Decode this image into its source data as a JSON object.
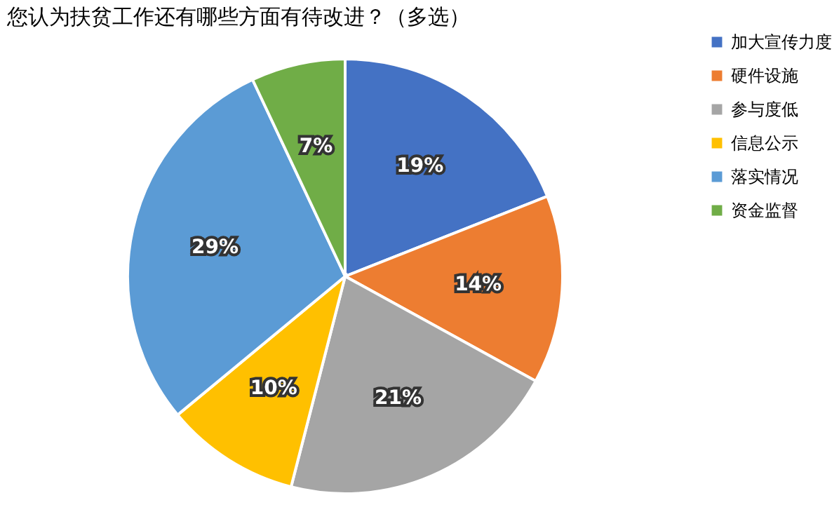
{
  "chart_data": {
    "type": "pie",
    "title": "您认为扶贫工作还有哪些方面有待改进？（多选）",
    "categories": [
      "加大宣传力度",
      "硬件设施",
      "参与度低",
      "信息公示",
      "落实情况",
      "资金监督"
    ],
    "values": [
      19,
      14,
      21,
      10,
      29,
      7
    ],
    "colors": [
      "#4472c4",
      "#ed7d31",
      "#a5a5a5",
      "#ffc000",
      "#5b9bd5",
      "#70ad47"
    ],
    "value_labels": [
      "19%",
      "14%",
      "21%",
      "10%",
      "29%",
      "7%"
    ],
    "legend": "right"
  }
}
